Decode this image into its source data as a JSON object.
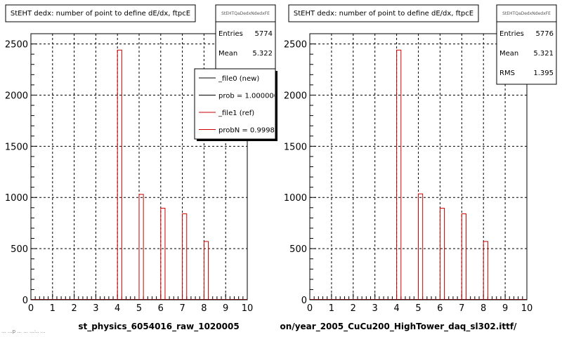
{
  "footer_text": "... ...p ... ...  ...:.. ...",
  "chart_data": [
    {
      "type": "bar",
      "title": "StEHT dedx: number of point to define dE/dx, ftpcE",
      "xlabel": "st_physics_6054016_raw_1020005",
      "ylabel": "",
      "xlim": [
        0,
        10
      ],
      "ylim": [
        0,
        2600
      ],
      "x_ticks": [
        "0",
        "1",
        "2",
        "3",
        "4",
        "5",
        "6",
        "7",
        "8",
        "9",
        "10"
      ],
      "y_ticks": [
        "0",
        "500",
        "1000",
        "1500",
        "2000",
        "2500"
      ],
      "grid": true,
      "bin_width": 0.2,
      "bins": [
        {
          "x": 4.1,
          "value": 2440
        },
        {
          "x": 5.1,
          "value": 1030
        },
        {
          "x": 6.1,
          "value": 895
        },
        {
          "x": 7.1,
          "value": 840
        },
        {
          "x": 8.1,
          "value": 570
        }
      ],
      "series": [
        {
          "name": "_file0 (new)",
          "color": "#000000"
        },
        {
          "name": "_file1 (ref)",
          "color": "#cc0000"
        }
      ],
      "stats": {
        "name": "StEHTQaDedxNdedxFE",
        "rows": [
          {
            "label": "Entries",
            "value": "5774"
          },
          {
            "label": "Mean",
            "value": "5.322"
          }
        ]
      },
      "legend": {
        "placement": "top-right",
        "entries": [
          {
            "label": "_file0 (new)",
            "color": "#000000"
          },
          {
            "label": "prob = 1.000000",
            "color": "#000000"
          },
          {
            "label": "_file1 (ref)",
            "color": "#cc0000"
          },
          {
            "label": "probN = 0.999881",
            "color": "#cc0000"
          }
        ]
      }
    },
    {
      "type": "bar",
      "title": "StEHT dedx: number of point to define dE/dx, ftpcE",
      "xlabel": "on/year_2005_CuCu200_HighTower_daq_sl302.ittf/",
      "ylabel": "",
      "xlim": [
        0,
        10
      ],
      "ylim": [
        0,
        2600
      ],
      "x_ticks": [
        "0",
        "1",
        "2",
        "3",
        "4",
        "5",
        "6",
        "7",
        "8",
        "9",
        "10"
      ],
      "y_ticks": [
        "0",
        "500",
        "1000",
        "1500",
        "2000",
        "2500"
      ],
      "grid": true,
      "bin_width": 0.2,
      "bins": [
        {
          "x": 4.1,
          "value": 2440
        },
        {
          "x": 5.1,
          "value": 1035
        },
        {
          "x": 6.1,
          "value": 895
        },
        {
          "x": 7.1,
          "value": 840
        },
        {
          "x": 8.1,
          "value": 570
        }
      ],
      "series": [
        {
          "name": "",
          "color": "#cc0000"
        }
      ],
      "stats": {
        "name": "StEHTQaDedxNdedxFE",
        "rows": [
          {
            "label": "Entries",
            "value": "5776"
          },
          {
            "label": "Mean",
            "value": "5.321"
          },
          {
            "label": "RMS",
            "value": "1.395"
          }
        ]
      },
      "legend": null
    }
  ]
}
